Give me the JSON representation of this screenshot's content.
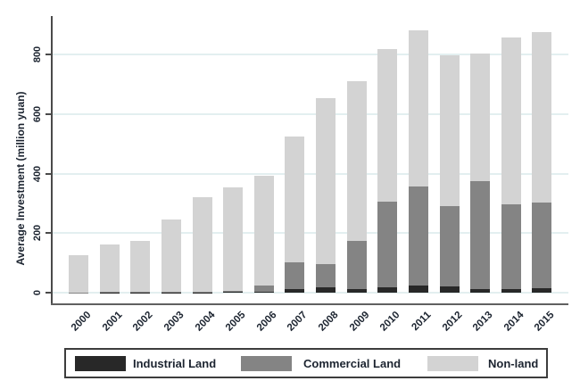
{
  "chart_data": {
    "type": "bar",
    "stacked": true,
    "title": "",
    "xlabel": "",
    "ylabel": "Average Investment (million yuan)",
    "ylim": [
      0,
      920
    ],
    "yticks": [
      0,
      200,
      400,
      600,
      800
    ],
    "grid": true,
    "legend_position": "bottom",
    "categories": [
      "2000",
      "2001",
      "2002",
      "2003",
      "2004",
      "2005",
      "2006",
      "2007",
      "2008",
      "2009",
      "2010",
      "2011",
      "2012",
      "2013",
      "2014",
      "2015"
    ],
    "series": [
      {
        "name": "Industrial Land",
        "color": "#282828",
        "values": [
          0,
          1,
          1,
          1,
          1,
          2,
          4,
          11,
          17,
          11,
          17,
          24,
          20,
          11,
          11,
          15
        ]
      },
      {
        "name": "Commercial Land",
        "color": "#848484",
        "values": [
          1,
          3,
          3,
          2,
          3,
          4,
          19,
          90,
          79,
          164,
          290,
          334,
          272,
          365,
          287,
          288
        ]
      },
      {
        "name": "Non-land",
        "color": "#d3d3d3",
        "values": [
          124,
          157,
          170,
          242,
          316,
          349,
          371,
          423,
          556,
          534,
          510,
          524,
          505,
          428,
          559,
          572
        ]
      }
    ],
    "totals": [
      125,
      161,
      174,
      245,
      320,
      355,
      394,
      524,
      652,
      709,
      817,
      882,
      797,
      804,
      857,
      875
    ]
  },
  "legend": {
    "items": [
      "Industrial Land",
      "Commercial Land",
      "Non-land"
    ]
  },
  "style_colors": {
    "gridline": "#e3eff0",
    "axis": "#4a4a4a",
    "text": "#1c2430",
    "legend_border": "#3d3d3d"
  }
}
